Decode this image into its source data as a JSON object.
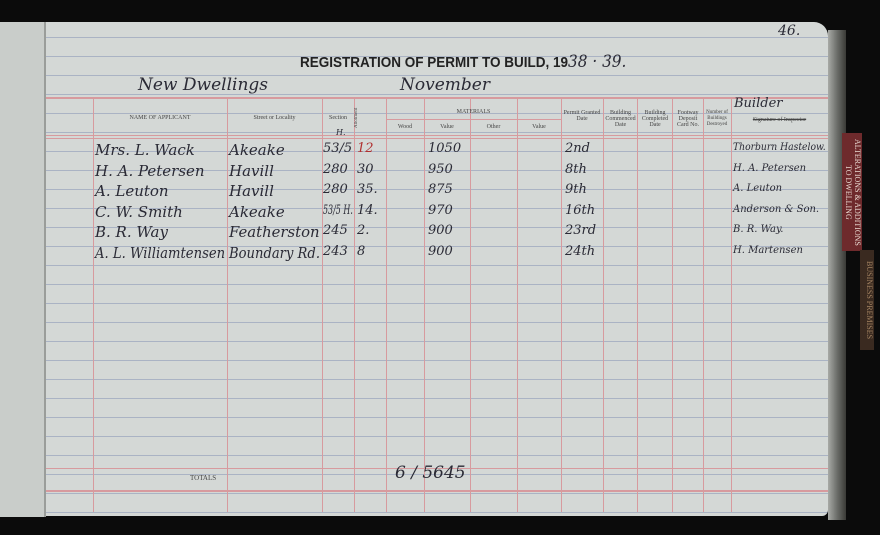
{
  "page_number": "46.",
  "title": "REGISTRATION OF PERMIT TO BUILD, 19",
  "title_year": "38 · 39.",
  "category": "New Dwellings",
  "month": "November",
  "headers": {
    "name": "NAME OF APPLICANT",
    "street": "Street or Locality",
    "section": "Section",
    "allotment": "Allotment",
    "materials": "MATERIALS",
    "wood": "Wood",
    "value1": "Value",
    "other": "Other",
    "value2": "Value",
    "permit": "Permit Granted Date",
    "commenced": "Building Commenced Date",
    "completed": "Building Completed Date",
    "footway": "Footway Deposit Card No.",
    "destroyed": "Number of Buildings Destroyed",
    "inspector_handwritten": "Builder",
    "inspector": "Signature of Inspector"
  },
  "section_prefix": "H.",
  "rows": [
    {
      "name": "Mrs. L. Wack",
      "street": "Akeake",
      "section": "53/5",
      "allotment": "12",
      "value": "1050",
      "permit": "2nd",
      "builder": "Thorburn Hastelow."
    },
    {
      "name": "H. A. Petersen",
      "street": "Havill",
      "section": "280",
      "allotment": "30",
      "value": "950",
      "permit": "8th",
      "builder": "H. A. Petersen"
    },
    {
      "name": "A. Leuton",
      "street": "Havill",
      "section": "280",
      "allotment": "35.",
      "value": "875",
      "permit": "9th",
      "builder": "A. Leuton"
    },
    {
      "name": "C. W. Smith",
      "street": "Akeake",
      "section": "53/5 H.",
      "allotment": "14.",
      "value": "970",
      "permit": "16th",
      "builder": "Anderson & Son."
    },
    {
      "name": "B. R. Way",
      "street": "Featherston",
      "section": "245",
      "allotment": "2.",
      "value": "900",
      "permit": "23rd",
      "builder": "B. R. Way."
    },
    {
      "name": "A. L. Williamtensen",
      "street": "Boundary Rd.",
      "section": "243",
      "allotment": "8",
      "value": "900",
      "permit": "24th",
      "builder": "H. Martensen"
    }
  ],
  "totals_label": "TOTALS",
  "totals_value": "6 / 5645",
  "side_tabs": [
    "ALTERATIONS & ADDITIONS TO DWELLING",
    "BUSINESS PREMISES"
  ],
  "colors": {
    "rule_red": "#d79a9e",
    "rule_blue": "#aab3c4",
    "paper": "#d4d8d6",
    "tab_red": "#6e2a2c"
  }
}
